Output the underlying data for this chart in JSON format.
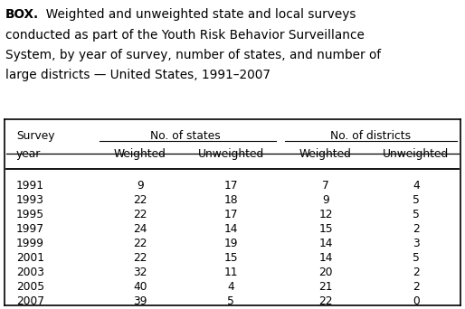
{
  "title_line1_bold": "BOX.",
  "title_line1_rest": "  Weighted and unweighted state and local surveys",
  "title_lines": [
    "conducted as part of the Youth Risk Behavior Surveillance",
    "System, by year of survey, number of states, and number of",
    "large districts — United States, 1991–2007"
  ],
  "rows": [
    [
      "1991",
      "9",
      "17",
      "7",
      "4"
    ],
    [
      "1993",
      "22",
      "18",
      "9",
      "5"
    ],
    [
      "1995",
      "22",
      "17",
      "12",
      "5"
    ],
    [
      "1997",
      "24",
      "14",
      "15",
      "2"
    ],
    [
      "1999",
      "22",
      "19",
      "14",
      "3"
    ],
    [
      "2001",
      "22",
      "15",
      "14",
      "5"
    ],
    [
      "2003",
      "32",
      "11",
      "20",
      "2"
    ],
    [
      "2005",
      "40",
      "4",
      "21",
      "2"
    ],
    [
      "2007",
      "39",
      "5",
      "22",
      "0"
    ]
  ],
  "bg_color": "#ffffff",
  "text_color": "#000000",
  "font_size_title": 9.8,
  "font_size_table": 8.8
}
